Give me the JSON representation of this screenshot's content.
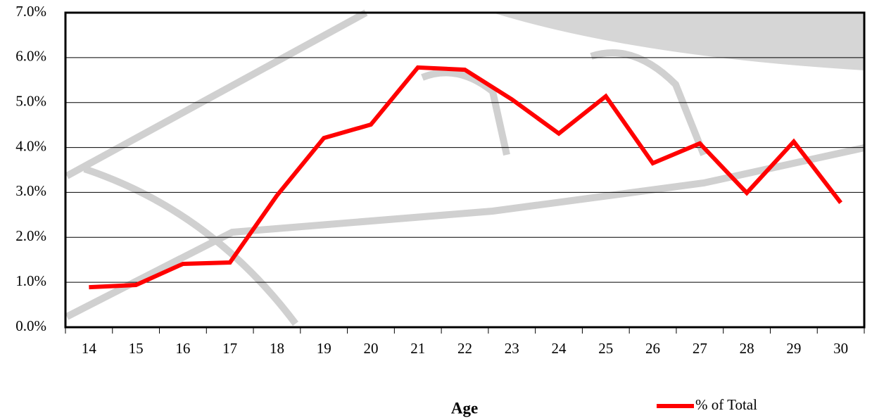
{
  "chart_data": {
    "type": "line",
    "x_label": "Age",
    "categories": [
      "14",
      "15",
      "16",
      "17",
      "18",
      "19",
      "20",
      "21",
      "22",
      "23",
      "24",
      "25",
      "26",
      "27",
      "28",
      "29",
      "30"
    ],
    "series": [
      {
        "name": "% of Total",
        "color": "#ff0000",
        "values": [
          0.89,
          0.94,
          1.41,
          1.44,
          2.93,
          4.21,
          4.51,
          5.78,
          5.73,
          5.07,
          4.31,
          5.14,
          3.65,
          4.09,
          2.99,
          4.13,
          2.77
        ]
      }
    ],
    "ylim": [
      0,
      7
    ],
    "yticks": [
      {
        "value": 0,
        "label": "0.0%"
      },
      {
        "value": 1,
        "label": "1.0%"
      },
      {
        "value": 2,
        "label": "2.0%"
      },
      {
        "value": 3,
        "label": "3.0%"
      },
      {
        "value": 4,
        "label": "4.0%"
      },
      {
        "value": 5,
        "label": "5.0%"
      },
      {
        "value": 6,
        "label": "6.0%"
      },
      {
        "value": 7,
        "label": "7.0%"
      }
    ],
    "grid": true,
    "legend": "bottom-right"
  }
}
